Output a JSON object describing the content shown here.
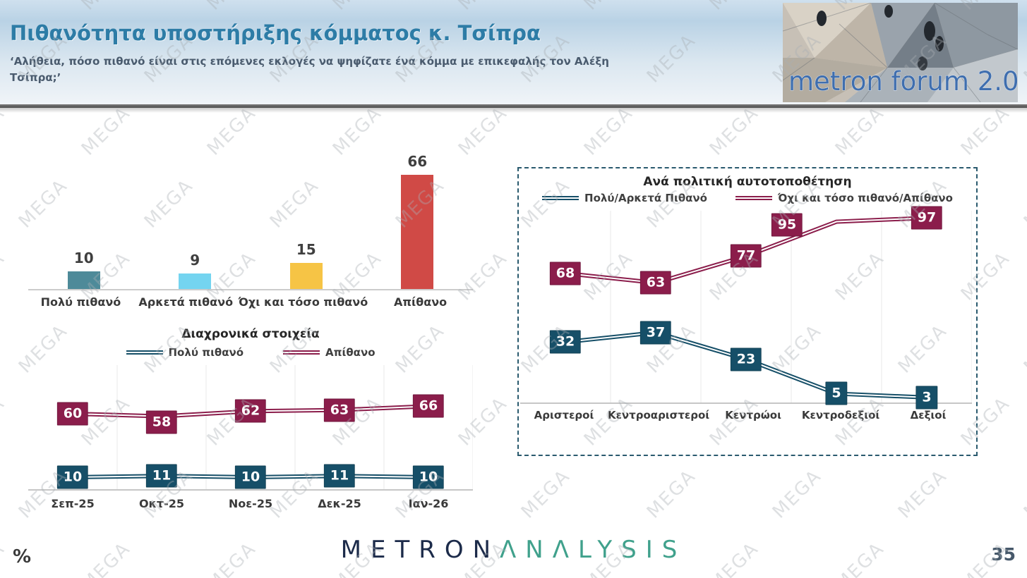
{
  "header": {
    "title": "Πιθανότητα υποστήριξης κόμματος κ. Τσίπρα",
    "subtitle_lines": [
      "‘Αλήθεια, πόσο πιθανό είναι στις επόμενες εκλογές να ψηφίζατε ένα κόμμα με επικεφαλής τον Αλέξη",
      "Τσίπρα;’"
    ],
    "logo_text": "metron forum 2.0"
  },
  "watermark": {
    "text": "MEGA"
  },
  "footer": {
    "unit_label": "%",
    "brand_first": "METRON",
    "brand_second": "ΛNΛLYSIS",
    "page_number": "35"
  },
  "colors": {
    "title_blue": "#2d7ca6",
    "subtitle_slate": "#4a5b6e",
    "teal_dark": "#164f68",
    "maroon": "#8b1d4b",
    "bar_teal": "#4e8a99",
    "bar_sky": "#74d4f0",
    "bar_amber": "#f6c445",
    "bar_red": "#d04a46",
    "brand_navy": "#1c2b4a",
    "brand_green": "#40a18c"
  },
  "chart_data": [
    {
      "id": "support-bar",
      "type": "bar",
      "categories": [
        "Πολύ πιθανό",
        "Αρκετά πιθανό",
        "Όχι και τόσο πιθανό",
        "Απίθανο"
      ],
      "values": [
        10,
        9,
        15,
        66
      ],
      "bar_colors": [
        "#4e8a99",
        "#74d4f0",
        "#f6c445",
        "#d04a46"
      ],
      "title": "",
      "xlabel": "",
      "ylabel": "",
      "ylim": [
        0,
        70
      ],
      "grid": false,
      "data_labels": "above bars"
    },
    {
      "id": "trend-line",
      "type": "line",
      "title": "Διαχρονικά στοιχεία",
      "categories": [
        "Σεπ-25",
        "Οκτ-25",
        "Νοε-25",
        "Δεκ-25",
        "Ιαν-26"
      ],
      "series": [
        {
          "name": "Πολύ πιθανό",
          "color": "#164f68",
          "values": [
            10,
            11,
            10,
            11,
            10
          ]
        },
        {
          "name": "Απίθανο",
          "color": "#8b1d4b",
          "values": [
            60,
            58,
            62,
            63,
            66
          ]
        }
      ],
      "xlabel": "",
      "ylabel": "",
      "ylim": [
        0,
        100
      ],
      "grid": "vertical",
      "legend_position": "top",
      "data_labels": "boxed on points"
    },
    {
      "id": "political-line",
      "type": "line",
      "title": "Ανά πολιτική αυτοτοποθέτηση",
      "categories": [
        "Αριστεροί",
        "Κεντροαριστεροί",
        "Κεντρώοι",
        "Κεντροδεξιοί",
        "Δεξιοί"
      ],
      "series": [
        {
          "name": "Πολύ/Αρκετά Πιθανό",
          "color": "#164f68",
          "values": [
            32,
            37,
            23,
            5,
            3
          ]
        },
        {
          "name": "Όχι και τόσο πιθανό/Απίθανο",
          "color": "#8b1d4b",
          "values": [
            68,
            63,
            77,
            95,
            97
          ]
        }
      ],
      "xlabel": "",
      "ylabel": "",
      "ylim": [
        0,
        110
      ],
      "grid": "vertical",
      "legend_position": "top",
      "data_labels": "boxed on points"
    }
  ]
}
